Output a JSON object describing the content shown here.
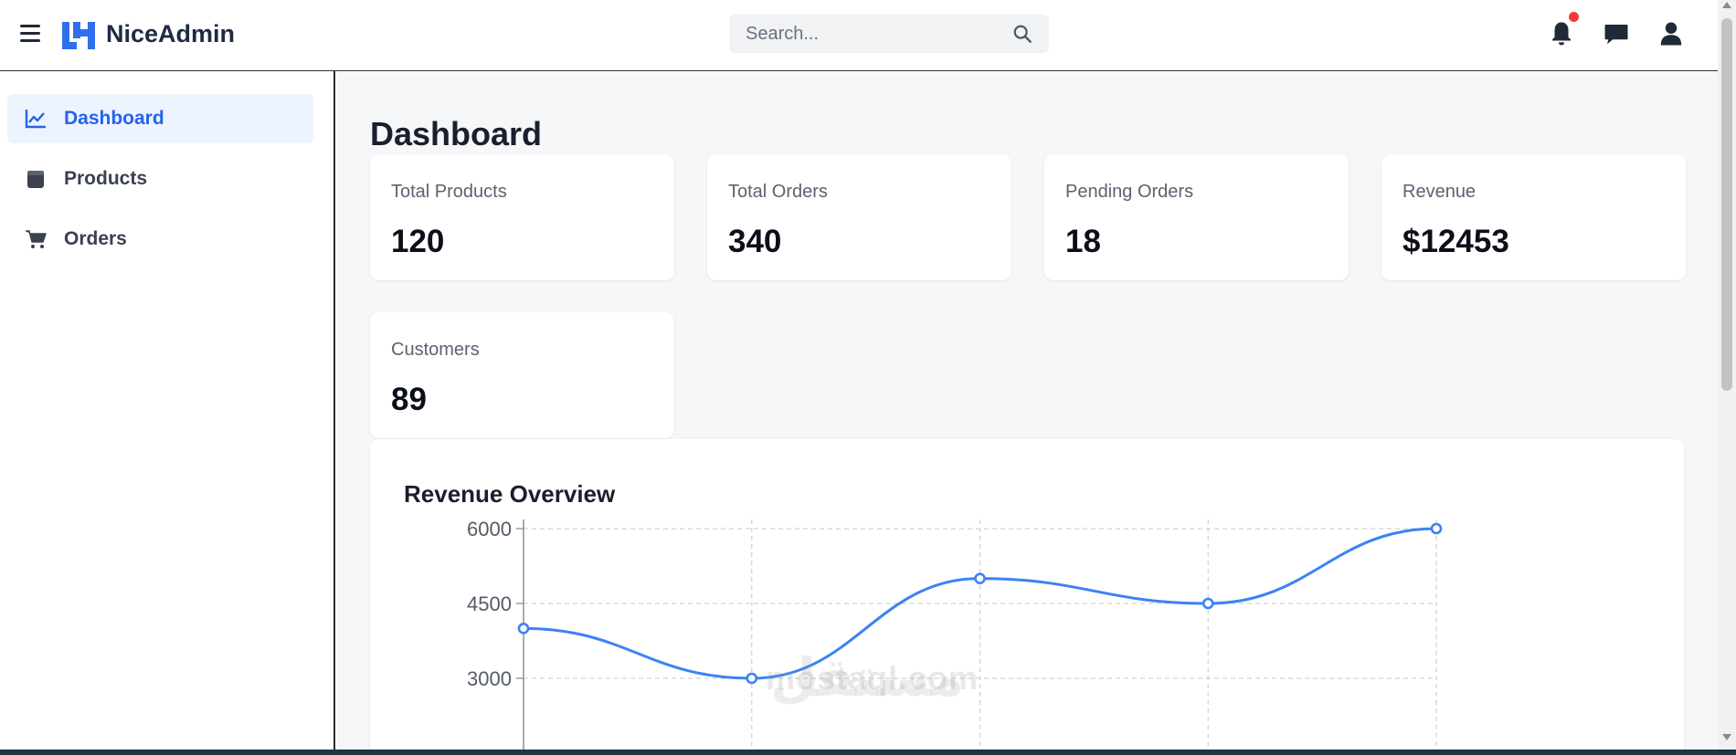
{
  "header": {
    "brand": "NiceAdmin",
    "search_placeholder": "Search...",
    "notification_dot_color": "#ef3b3b"
  },
  "sidebar": {
    "items": [
      {
        "label": "Dashboard",
        "icon": "chart-line-icon",
        "active": true
      },
      {
        "label": "Products",
        "icon": "box-icon",
        "active": false
      },
      {
        "label": "Orders",
        "icon": "cart-icon",
        "active": false
      }
    ]
  },
  "main": {
    "title": "Dashboard",
    "stats": [
      {
        "label": "Total Products",
        "value": "120"
      },
      {
        "label": "Total Orders",
        "value": "340"
      },
      {
        "label": "Pending Orders",
        "value": "18"
      },
      {
        "label": "Revenue",
        "value": "$12453"
      },
      {
        "label": "Customers",
        "value": "89"
      }
    ],
    "chart_title": "Revenue Overview"
  },
  "colors": {
    "accent": "#2563eb",
    "line": "#3b82f6",
    "background": "#f6f7f9"
  },
  "watermark": {
    "text": "mostaql.com",
    "arabic": "مستقل"
  },
  "chart_data": {
    "type": "line",
    "title": "Revenue Overview",
    "xlabel": "",
    "ylabel": "",
    "y_ticks": [
      3000,
      4500,
      6000
    ],
    "ylim": [
      1500,
      6200
    ],
    "grid": true,
    "series": [
      {
        "values": [
          4000,
          3000,
          5000,
          4500,
          6000
        ]
      }
    ]
  }
}
